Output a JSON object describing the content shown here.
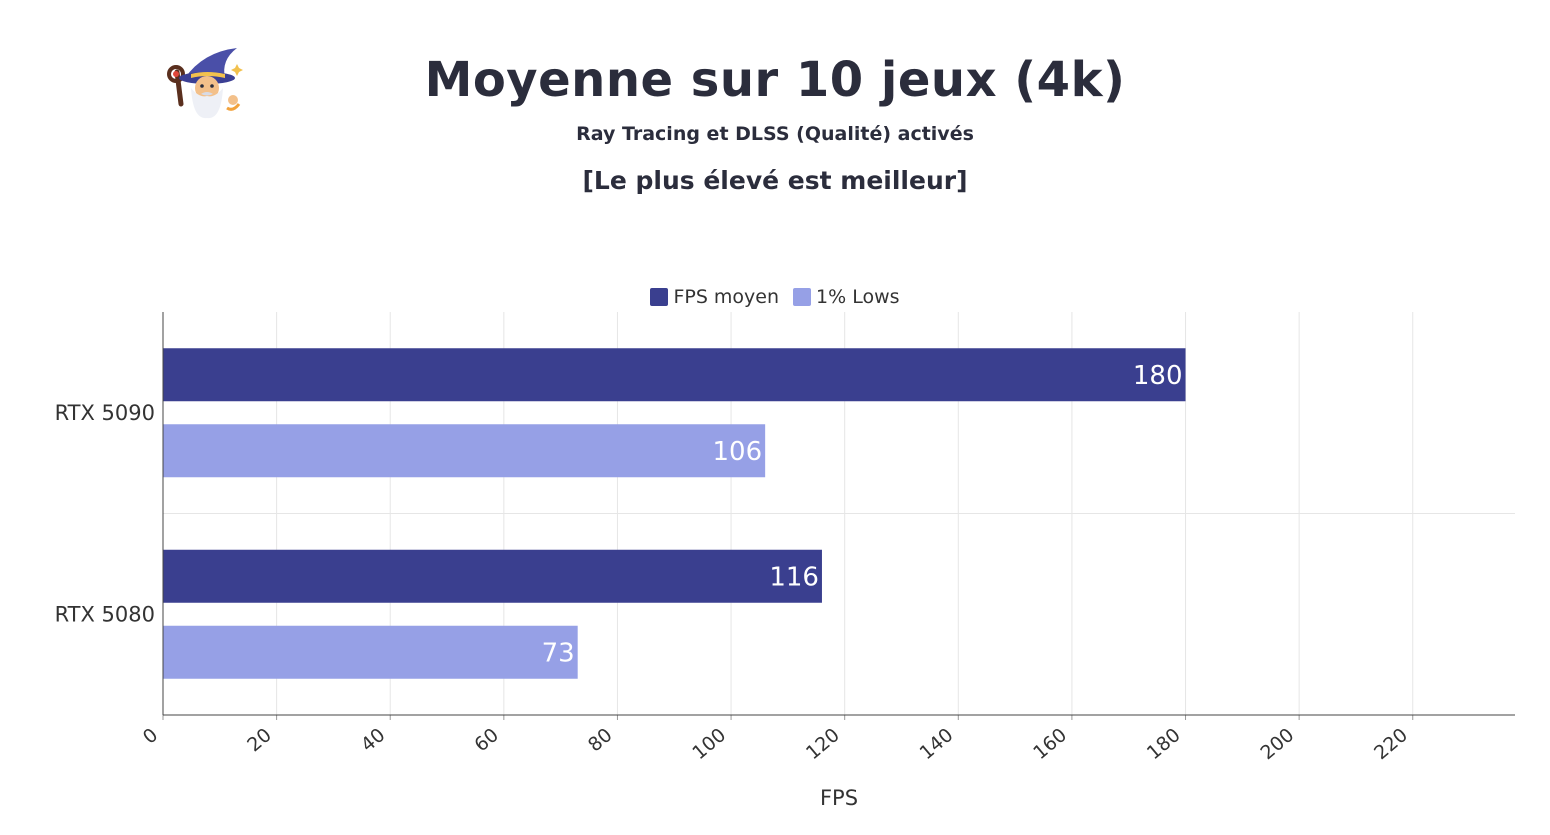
{
  "header": {
    "title": "Moyenne sur 10 jeux (4k)",
    "subtitle": "Ray Tracing et DLSS (Qualité) activés",
    "note": "[Le plus élevé est meilleur]",
    "logo_icon": "wizard-icon"
  },
  "colors": {
    "fps_moyen": "#3a3f8f",
    "lows": "#96a0e6",
    "label_text": "#ffffff"
  },
  "chart_data": {
    "type": "bar",
    "orientation": "horizontal",
    "categories": [
      "RTX 5090",
      "RTX 5080"
    ],
    "series": [
      {
        "name": "FPS moyen",
        "values": [
          180,
          116
        ]
      },
      {
        "name": "1% Lows",
        "values": [
          106,
          73
        ]
      }
    ],
    "xlabel": "FPS",
    "xlim": [
      0,
      238
    ],
    "xticks": [
      0,
      20,
      40,
      60,
      80,
      100,
      120,
      140,
      160,
      180,
      200,
      220
    ],
    "grid": true,
    "legend_position": "top-center"
  }
}
